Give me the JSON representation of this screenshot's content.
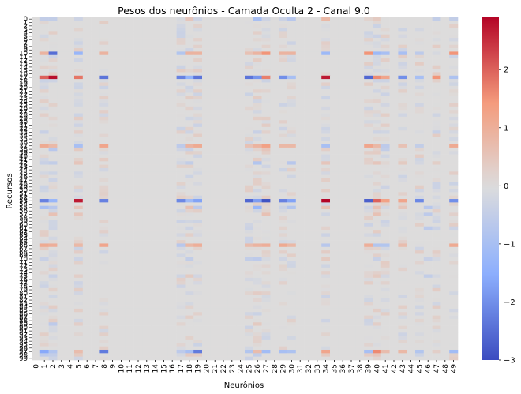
{
  "chart_data": {
    "type": "heatmap",
    "title": "Pesos dos neurônios - Camada Oculta 2 - Canal 9.0",
    "xlabel": "Neurônios",
    "ylabel": "Recursos",
    "x_ticks": [
      "0",
      "1",
      "2",
      "3",
      "4",
      "5",
      "6",
      "7",
      "8",
      "9",
      "10",
      "11",
      "12",
      "13",
      "14",
      "15",
      "16",
      "17",
      "18",
      "19",
      "20",
      "21",
      "22",
      "23",
      "24",
      "25",
      "26",
      "27",
      "28",
      "29",
      "30",
      "31",
      "32",
      "33",
      "34",
      "35",
      "36",
      "37",
      "38",
      "39",
      "40",
      "41",
      "42",
      "43",
      "44",
      "45",
      "46",
      "47",
      "48",
      "49"
    ],
    "y_ticks": [
      "0",
      "1",
      "2",
      "3",
      "4",
      "5",
      "6",
      "7",
      "8",
      "9",
      "10",
      "11",
      "12",
      "13",
      "14",
      "15",
      "16",
      "17",
      "18",
      "19",
      "20",
      "21",
      "22",
      "23",
      "24",
      "25",
      "26",
      "27",
      "28",
      "29",
      "30",
      "31",
      "32",
      "33",
      "34",
      "35",
      "36",
      "37",
      "38",
      "39",
      "40",
      "41",
      "42",
      "43",
      "44",
      "45",
      "46",
      "47",
      "48",
      "49",
      "50",
      "51",
      "52",
      "53",
      "54",
      "55",
      "56",
      "57",
      "58",
      "59",
      "60",
      "61",
      "62",
      "63",
      "64",
      "65",
      "66",
      "67",
      "68",
      "69",
      "70",
      "71",
      "72",
      "73",
      "74",
      "75",
      "76",
      "77",
      "78",
      "79",
      "80",
      "81",
      "82",
      "83",
      "84",
      "85",
      "86",
      "87",
      "88",
      "89",
      "90",
      "91",
      "92",
      "93",
      "94",
      "95",
      "96",
      "97",
      "98",
      "99"
    ],
    "colorbar": {
      "cmap": "coolwarm",
      "vmin": -3,
      "vmax": 2.9,
      "ticks": [
        "2",
        "1",
        "0",
        "−1",
        "−2",
        "−3"
      ]
    },
    "rows": 100,
    "cols": 50,
    "background_value": 0.0,
    "strong_rows": [
      {
        "row": 10,
        "values": {
          "1": 0.9,
          "2": -2.5,
          "5": -1.3,
          "8": 0.9,
          "17": -0.8,
          "18": 0.9,
          "19": 0.9,
          "25": 0.6,
          "26": 0.9,
          "27": 1.5,
          "29": 0.9,
          "30": 0.9,
          "34": -1.2,
          "39": 1.5,
          "40": -1.2,
          "41": -1.0,
          "43": -1.0,
          "45": -0.6,
          "49": 1.5
        }
      },
      {
        "row": 17,
        "values": {
          "1": 2.0,
          "2": 2.8,
          "5": 1.8,
          "8": -2.4,
          "17": -2.2,
          "18": -1.4,
          "19": -2.4,
          "25": -2.4,
          "26": -1.9,
          "27": 1.7,
          "29": -2.0,
          "30": -1.0,
          "34": 2.7,
          "39": -2.6,
          "40": 1.6,
          "41": 1.2,
          "43": -2.0,
          "45": -1.0,
          "47": 1.5,
          "49": -0.9
        }
      },
      {
        "row": 37,
        "values": {
          "1": 1.1,
          "2": 0.8,
          "5": -1.0,
          "8": 1.2,
          "17": -0.6,
          "18": 0.9,
          "19": 1.1,
          "25": 0.6,
          "26": 0.9,
          "27": 1.3,
          "29": 0.8,
          "30": 0.8,
          "34": -1.0,
          "39": 1.2,
          "40": 0.8,
          "41": -0.6,
          "43": 0.6,
          "45": -0.5,
          "49": 1.1
        }
      },
      {
        "row": 53,
        "values": {
          "1": -2.2,
          "2": -1.3,
          "5": 2.7,
          "8": -2.2,
          "17": -2.1,
          "18": -1.2,
          "19": -1.7,
          "25": -2.6,
          "26": -1.8,
          "27": -2.9,
          "29": -2.2,
          "30": -1.7,
          "34": 2.9,
          "39": -2.7,
          "40": 2.0,
          "41": 1.3,
          "43": 1.2,
          "45": -2.1,
          "49": -2.0
        }
      },
      {
        "row": 66,
        "values": {
          "1": 1.1,
          "2": 1.0,
          "5": 0.8,
          "8": 1.2,
          "17": -0.7,
          "18": 0.8,
          "19": 1.0,
          "25": 0.7,
          "26": 0.9,
          "27": 1.0,
          "29": 1.1,
          "30": 0.8,
          "34": -0.7,
          "39": 1.0,
          "40": -0.8,
          "41": -0.8,
          "43": 0.7,
          "49": 1.1
        }
      },
      {
        "row": 97,
        "values": {
          "1": -1.6,
          "2": -0.8,
          "5": 0.7,
          "8": -2.3,
          "17": -0.6,
          "18": -1.0,
          "19": -2.3,
          "25": -0.8,
          "26": 0.7,
          "27": -1.1,
          "29": -1.0,
          "30": -0.9,
          "34": 1.2,
          "39": -1.0,
          "40": 1.6,
          "41": 0.7,
          "43": 0.8,
          "45": -0.8,
          "49": -1.1
        }
      }
    ],
    "light_rows": [
      {
        "row": 0,
        "values": {
          "1": -0.5,
          "2": -0.5,
          "5": -0.3,
          "18": 0.5,
          "19": -0.3,
          "26": -1.0,
          "30": -0.7,
          "34": 0.8,
          "40": 0.4,
          "47": -0.5,
          "49": -0.5
        }
      },
      {
        "row": 33,
        "values": {
          "1": -0.4,
          "5": 0.3,
          "18": -0.3,
          "26": -0.4,
          "40": -0.3,
          "47": -0.4
        }
      },
      {
        "row": 38,
        "values": {
          "2": -0.7,
          "5": 0.4,
          "18": -0.4,
          "27": 0.5,
          "34": 0.3,
          "41": -0.5
        }
      },
      {
        "row": 42,
        "values": {
          "1": -0.4,
          "2": -0.5,
          "5": 0.5,
          "18": -0.5,
          "26": -0.8,
          "30": -0.7,
          "34": 0.5,
          "40": 0.5,
          "43": 0.4
        }
      },
      {
        "row": 55,
        "values": {
          "1": -1.0,
          "2": -0.7,
          "5": 0.5,
          "18": 0.6,
          "19": -0.6,
          "26": -1.3,
          "30": -0.8,
          "34": 0.6,
          "40": 0.6,
          "43": 0.5,
          "46": -0.7
        }
      },
      {
        "row": 57,
        "values": {
          "2": 0.6,
          "5": 0.5,
          "27": 0.6,
          "40": 0.6,
          "46": -0.6
        }
      },
      {
        "row": 61,
        "values": {
          "2": -0.3,
          "18": -0.3,
          "46": -0.6
        }
      },
      {
        "row": 70,
        "values": {
          "1": -0.4,
          "5": -0.3,
          "18": -0.5,
          "25": -0.5,
          "26": -0.6,
          "34": 0.4,
          "40": -0.4,
          "46": -0.4
        }
      },
      {
        "row": 75,
        "values": {
          "2": -0.4,
          "5": 0.3,
          "18": 0.4,
          "40": 0.4,
          "46": -0.5
        }
      },
      {
        "row": 89,
        "values": {
          "2": -0.6,
          "5": 0.3,
          "26": 0.4,
          "40": 0.3
        }
      },
      {
        "row": 98,
        "values": {
          "1": -0.6,
          "2": -0.5,
          "5": 0.4,
          "18": 0.4,
          "26": -0.5,
          "34": 0.4,
          "40": 0.5
        }
      }
    ]
  }
}
